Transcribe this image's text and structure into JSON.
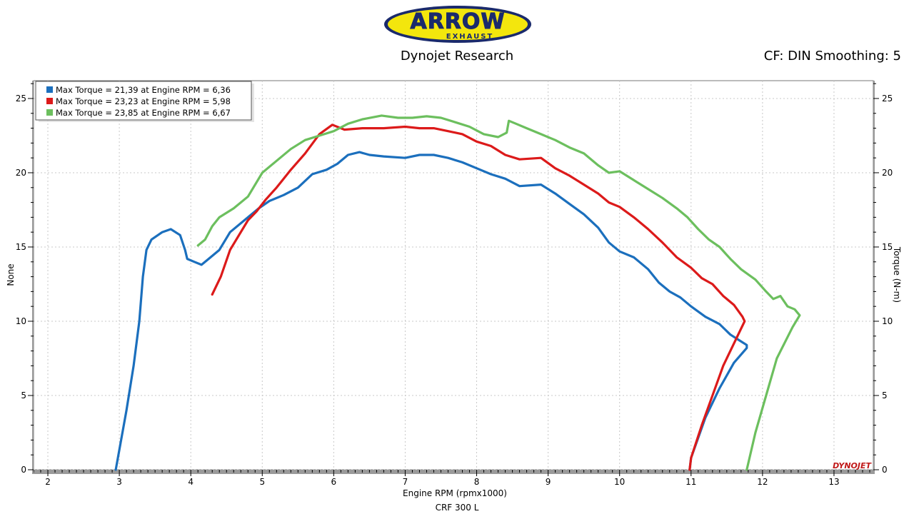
{
  "header": {
    "logo_text": "ARROW",
    "logo_subtext": "EXHAUST",
    "subtitle": "Dynojet Research",
    "cf_text": "CF: DIN Smoothing: 5"
  },
  "footer": {
    "vehicle": "CRF 300 L"
  },
  "watermark": "DYNOJET",
  "colors": {
    "blue": "#1b6fbd",
    "red": "#dc1a1a",
    "green": "#6cbf5e"
  },
  "chart_data": {
    "type": "line",
    "xlabel": "Engine RPM (rpmx1000)",
    "ylabel_left": "None",
    "ylabel_right": "Torque (N-m)",
    "xlim": [
      1.8,
      13.55
    ],
    "ylim": [
      0,
      26.2
    ],
    "x_ticks": [
      2,
      3,
      4,
      5,
      6,
      7,
      8,
      9,
      10,
      11,
      12,
      13
    ],
    "y_ticks": [
      0,
      5,
      10,
      15,
      20,
      25
    ],
    "grid": true,
    "legend_position": "top-left",
    "series": [
      {
        "name": "Max Torque = 21,39 at Engine RPM = 6,36",
        "color": "#1b6fbd",
        "points": [
          [
            2.95,
            0
          ],
          [
            3.1,
            4.0
          ],
          [
            3.2,
            7.0
          ],
          [
            3.28,
            10.0
          ],
          [
            3.33,
            13.0
          ],
          [
            3.38,
            14.8
          ],
          [
            3.45,
            15.5
          ],
          [
            3.6,
            16.0
          ],
          [
            3.72,
            16.2
          ],
          [
            3.85,
            15.8
          ],
          [
            3.92,
            14.8
          ],
          [
            3.95,
            14.2
          ],
          [
            4.05,
            14.0
          ],
          [
            4.15,
            13.8
          ],
          [
            4.25,
            14.2
          ],
          [
            4.4,
            14.8
          ],
          [
            4.55,
            16.0
          ],
          [
            4.75,
            16.8
          ],
          [
            4.95,
            17.6
          ],
          [
            5.1,
            18.1
          ],
          [
            5.3,
            18.5
          ],
          [
            5.5,
            19.0
          ],
          [
            5.7,
            19.9
          ],
          [
            5.9,
            20.2
          ],
          [
            6.05,
            20.6
          ],
          [
            6.2,
            21.2
          ],
          [
            6.36,
            21.39
          ],
          [
            6.5,
            21.2
          ],
          [
            6.7,
            21.1
          ],
          [
            7.0,
            21.0
          ],
          [
            7.2,
            21.2
          ],
          [
            7.4,
            21.2
          ],
          [
            7.6,
            21.0
          ],
          [
            7.8,
            20.7
          ],
          [
            8.0,
            20.3
          ],
          [
            8.2,
            19.9
          ],
          [
            8.4,
            19.6
          ],
          [
            8.6,
            19.1
          ],
          [
            8.9,
            19.2
          ],
          [
            9.1,
            18.6
          ],
          [
            9.3,
            17.9
          ],
          [
            9.5,
            17.2
          ],
          [
            9.7,
            16.3
          ],
          [
            9.85,
            15.3
          ],
          [
            10.0,
            14.7
          ],
          [
            10.2,
            14.3
          ],
          [
            10.4,
            13.5
          ],
          [
            10.55,
            12.6
          ],
          [
            10.7,
            12.0
          ],
          [
            10.85,
            11.6
          ],
          [
            11.0,
            11.0
          ],
          [
            11.2,
            10.3
          ],
          [
            11.4,
            9.8
          ],
          [
            11.55,
            9.1
          ],
          [
            11.68,
            8.7
          ],
          [
            11.78,
            8.4
          ],
          [
            11.78,
            8.2
          ],
          [
            11.6,
            7.2
          ],
          [
            11.4,
            5.5
          ],
          [
            11.2,
            3.5
          ],
          [
            11.0,
            0.8
          ],
          [
            10.98,
            0
          ]
        ]
      },
      {
        "name": "Max Torque = 23,23 at Engine RPM = 5,98",
        "color": "#dc1a1a",
        "points": [
          [
            4.3,
            11.8
          ],
          [
            4.42,
            13.0
          ],
          [
            4.55,
            14.8
          ],
          [
            4.7,
            16.0
          ],
          [
            4.8,
            16.8
          ],
          [
            4.92,
            17.4
          ],
          [
            5.05,
            18.2
          ],
          [
            5.2,
            19.0
          ],
          [
            5.4,
            20.2
          ],
          [
            5.6,
            21.3
          ],
          [
            5.8,
            22.6
          ],
          [
            5.98,
            23.23
          ],
          [
            6.15,
            22.9
          ],
          [
            6.4,
            23.0
          ],
          [
            6.7,
            23.0
          ],
          [
            7.0,
            23.1
          ],
          [
            7.2,
            23.0
          ],
          [
            7.4,
            23.0
          ],
          [
            7.6,
            22.8
          ],
          [
            7.8,
            22.6
          ],
          [
            8.0,
            22.1
          ],
          [
            8.2,
            21.8
          ],
          [
            8.4,
            21.2
          ],
          [
            8.6,
            20.9
          ],
          [
            8.9,
            21.0
          ],
          [
            9.1,
            20.3
          ],
          [
            9.3,
            19.8
          ],
          [
            9.5,
            19.2
          ],
          [
            9.7,
            18.6
          ],
          [
            9.85,
            18.0
          ],
          [
            10.0,
            17.7
          ],
          [
            10.2,
            17.0
          ],
          [
            10.4,
            16.2
          ],
          [
            10.6,
            15.3
          ],
          [
            10.8,
            14.3
          ],
          [
            11.0,
            13.6
          ],
          [
            11.15,
            12.9
          ],
          [
            11.3,
            12.5
          ],
          [
            11.45,
            11.7
          ],
          [
            11.6,
            11.1
          ],
          [
            11.72,
            10.3
          ],
          [
            11.75,
            10.0
          ],
          [
            11.6,
            8.5
          ],
          [
            11.45,
            7.0
          ],
          [
            11.3,
            5.0
          ],
          [
            11.15,
            3.0
          ],
          [
            11.0,
            0.8
          ],
          [
            10.98,
            0
          ]
        ]
      },
      {
        "name": "Max Torque = 23,85 at Engine RPM = 6,67",
        "color": "#6cbf5e",
        "points": [
          [
            4.1,
            15.1
          ],
          [
            4.2,
            15.5
          ],
          [
            4.3,
            16.4
          ],
          [
            4.4,
            17.0
          ],
          [
            4.6,
            17.6
          ],
          [
            4.8,
            18.4
          ],
          [
            5.0,
            20.0
          ],
          [
            5.2,
            20.8
          ],
          [
            5.4,
            21.6
          ],
          [
            5.6,
            22.2
          ],
          [
            5.8,
            22.5
          ],
          [
            6.0,
            22.8
          ],
          [
            6.2,
            23.3
          ],
          [
            6.4,
            23.6
          ],
          [
            6.67,
            23.85
          ],
          [
            6.9,
            23.7
          ],
          [
            7.1,
            23.7
          ],
          [
            7.3,
            23.8
          ],
          [
            7.5,
            23.7
          ],
          [
            7.7,
            23.4
          ],
          [
            7.9,
            23.1
          ],
          [
            8.1,
            22.6
          ],
          [
            8.3,
            22.4
          ],
          [
            8.42,
            22.7
          ],
          [
            8.45,
            23.5
          ],
          [
            8.55,
            23.3
          ],
          [
            8.7,
            23.0
          ],
          [
            8.9,
            22.6
          ],
          [
            9.1,
            22.2
          ],
          [
            9.3,
            21.7
          ],
          [
            9.5,
            21.3
          ],
          [
            9.7,
            20.5
          ],
          [
            9.85,
            20.0
          ],
          [
            10.0,
            20.1
          ],
          [
            10.2,
            19.5
          ],
          [
            10.4,
            18.9
          ],
          [
            10.6,
            18.3
          ],
          [
            10.8,
            17.6
          ],
          [
            10.95,
            17.0
          ],
          [
            11.1,
            16.2
          ],
          [
            11.25,
            15.5
          ],
          [
            11.4,
            15.0
          ],
          [
            11.55,
            14.2
          ],
          [
            11.7,
            13.5
          ],
          [
            11.9,
            12.8
          ],
          [
            12.05,
            12.0
          ],
          [
            12.15,
            11.5
          ],
          [
            12.25,
            11.7
          ],
          [
            12.35,
            11.0
          ],
          [
            12.45,
            10.8
          ],
          [
            12.52,
            10.4
          ],
          [
            12.42,
            9.6
          ],
          [
            12.2,
            7.5
          ],
          [
            12.05,
            5.0
          ],
          [
            11.9,
            2.5
          ],
          [
            11.78,
            0
          ]
        ]
      }
    ]
  }
}
